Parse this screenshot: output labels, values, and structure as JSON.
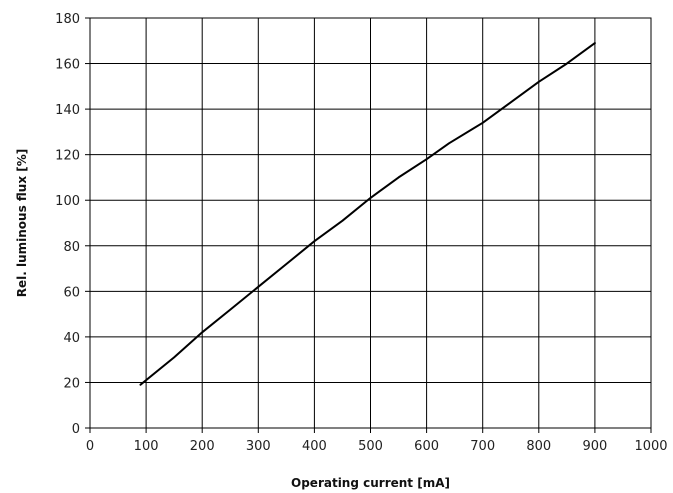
{
  "chart_data": {
    "type": "line",
    "xlabel": "Operating current [mA]",
    "ylabel": "Rel. luminous flux [%]",
    "xlim": [
      0,
      1000
    ],
    "ylim": [
      0,
      180
    ],
    "x_ticks": [
      0,
      100,
      200,
      300,
      400,
      500,
      600,
      700,
      800,
      900,
      1000
    ],
    "y_ticks": [
      0,
      20,
      40,
      60,
      80,
      100,
      120,
      140,
      160,
      180
    ],
    "grid": true,
    "legend": "none",
    "series": [
      {
        "color": "#000000",
        "x": [
          90,
          150,
          200,
          250,
          300,
          350,
          400,
          450,
          500,
          550,
          600,
          640,
          700,
          750,
          800,
          850,
          900
        ],
        "y": [
          19,
          31,
          42,
          52,
          62,
          72,
          82,
          91,
          101,
          110,
          118,
          125,
          134,
          143,
          152,
          160,
          169
        ]
      }
    ]
  }
}
